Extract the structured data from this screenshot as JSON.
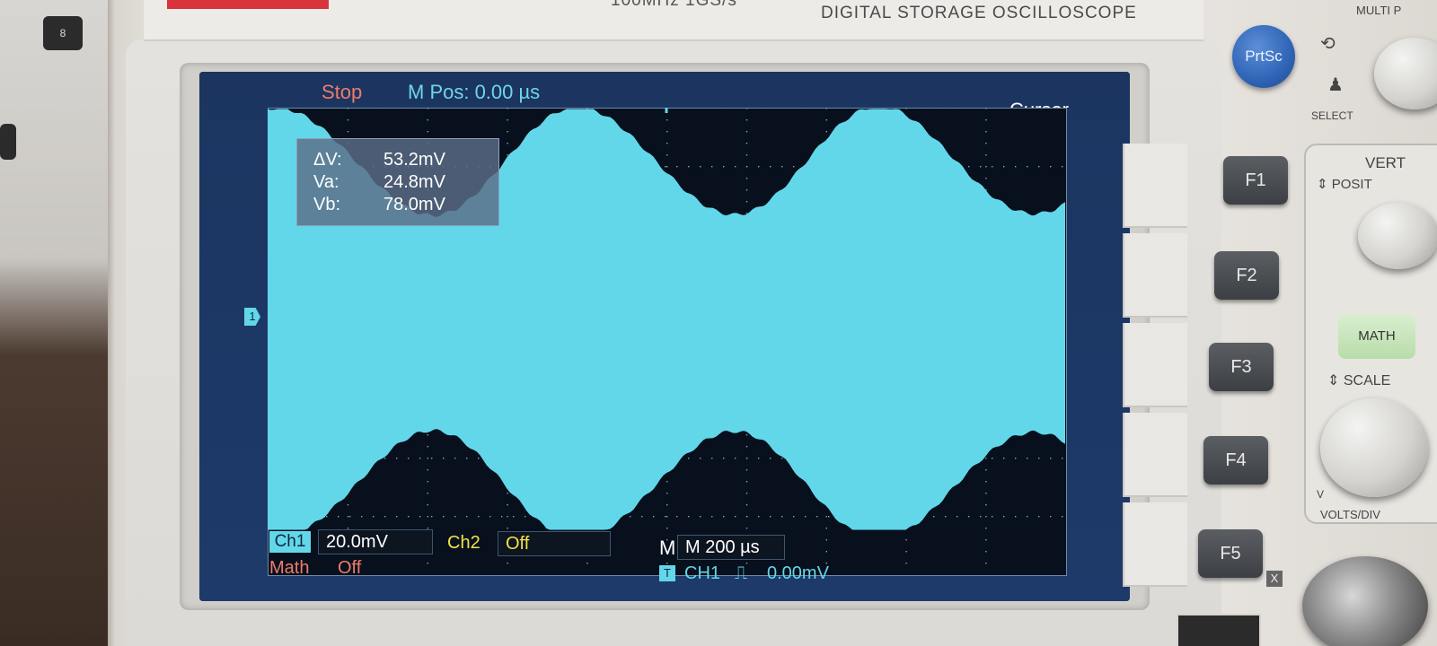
{
  "device": {
    "top_label_left": "100MHz  1GS/s",
    "top_label_right": "DIGITAL STORAGE OSCILLOSCOPE",
    "multi_label": "MULTI P",
    "select_label": "SELECT",
    "prtsc_label": "PrtSc",
    "function_keys": [
      "F1",
      "F2",
      "F3",
      "F4",
      "F5"
    ],
    "vertical_label": "VERT",
    "position_label": "POSIT",
    "math_label": "MATH",
    "scale_label": "SCALE",
    "volts_div_label": "VOLTS/DIV",
    "x_label": "X",
    "v_label": "V",
    "desk_key_label": "8"
  },
  "screen": {
    "status": "Stop",
    "m_pos": "M Pos: 0.00 µs",
    "mode": "Cursor",
    "channel_marker": "1",
    "cursor_readout": {
      "delta_v_label": "ΔV:",
      "delta_v_value": "53.2mV",
      "va_label": "Va:",
      "va_value": "24.8mV",
      "vb_label": "Vb:",
      "vb_value": "78.0mV"
    },
    "bottom": {
      "ch1_label": "Ch1",
      "ch1_scale": "20.0mV",
      "ch2_label": "Ch2",
      "ch2_state": "Off",
      "math_label": "Math",
      "math_state": "Off",
      "timebase": "M 200 µs",
      "trigger_icon": "T",
      "trigger_source": "CH1",
      "trigger_level": "0.00mV"
    },
    "colors": {
      "trace": "#63d7ea",
      "status": "#f07a6a",
      "ch2": "#f2e24a",
      "math": "#f07a6a"
    }
  }
}
